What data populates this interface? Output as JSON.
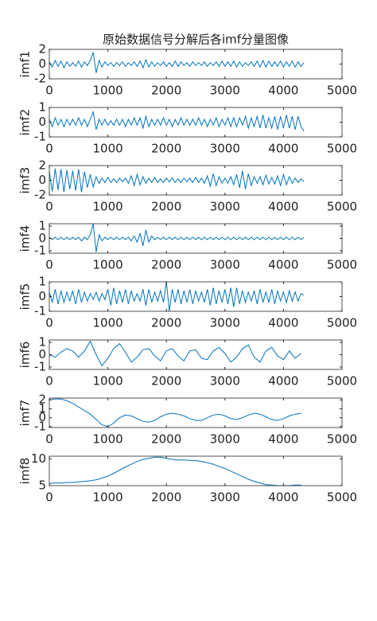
{
  "chart_data": [
    {
      "type": "line",
      "title": "原始数据信号分解后各imf分量图像",
      "ylabel": "imf1",
      "color": "#0072bd",
      "x": [
        0,
        50,
        100,
        150,
        200,
        250,
        300,
        350,
        400,
        450,
        500,
        550,
        600,
        650,
        700,
        750,
        800,
        850,
        900,
        950,
        1000,
        1050,
        1100,
        1150,
        1200,
        1250,
        1300,
        1350,
        1400,
        1450,
        1500,
        1550,
        1600,
        1650,
        1700,
        1750,
        1800,
        1850,
        1900,
        1950,
        2000,
        2050,
        2100,
        2150,
        2200,
        2250,
        2300,
        2350,
        2400,
        2450,
        2500,
        2550,
        2600,
        2650,
        2700,
        2750,
        2800,
        2850,
        2900,
        2950,
        3000,
        3050,
        3100,
        3150,
        3200,
        3250,
        3300,
        3350,
        3400,
        3450,
        3500,
        3550,
        3600,
        3650,
        3700,
        3750,
        3800,
        3850,
        3900,
        3950,
        4000,
        4050,
        4100,
        4150,
        4200,
        4250,
        4300,
        4350
      ],
      "values": [
        0.3,
        -0.4,
        0.5,
        -0.3,
        0.4,
        -0.5,
        0.3,
        -0.3,
        0.2,
        -0.3,
        0.4,
        -0.4,
        0.3,
        -0.2,
        0.5,
        1.6,
        -1.2,
        0.5,
        -0.4,
        0.3,
        -0.2,
        0.2,
        -0.3,
        0.2,
        -0.2,
        0.3,
        -0.3,
        0.2,
        -0.2,
        0.3,
        -0.3,
        0.4,
        -0.5,
        0.6,
        -0.4,
        0.3,
        -0.3,
        0.2,
        -0.2,
        0.3,
        -0.3,
        0.2,
        -0.3,
        0.4,
        -0.3,
        0.3,
        -0.2,
        0.2,
        -0.3,
        0.3,
        -0.2,
        0.2,
        -0.2,
        0.3,
        -0.3,
        0.2,
        -0.2,
        0.3,
        -0.3,
        0.4,
        -0.3,
        0.3,
        -0.3,
        0.4,
        -0.4,
        0.3,
        -0.3,
        0.2,
        -0.2,
        0.3,
        -0.3,
        0.4,
        -0.4,
        0.5,
        -0.4,
        0.4,
        -0.3,
        0.3,
        -0.3,
        0.4,
        -0.4,
        0.3,
        -0.3,
        0.4,
        -0.4,
        0.3,
        -0.3,
        0.2
      ],
      "xlim": [
        0,
        5000
      ],
      "xticks": [
        0,
        1000,
        2000,
        3000,
        4000,
        5000
      ],
      "ylim": [
        -2,
        2
      ],
      "yticks": [
        -2,
        0,
        2
      ]
    },
    {
      "type": "line",
      "ylabel": "imf2",
      "color": "#0072bd",
      "x": [
        0,
        50,
        100,
        150,
        200,
        250,
        300,
        350,
        400,
        450,
        500,
        550,
        600,
        650,
        700,
        750,
        800,
        850,
        900,
        950,
        1000,
        1050,
        1100,
        1150,
        1200,
        1250,
        1300,
        1350,
        1400,
        1450,
        1500,
        1550,
        1600,
        1650,
        1700,
        1750,
        1800,
        1850,
        1900,
        1950,
        2000,
        2050,
        2100,
        2150,
        2200,
        2250,
        2300,
        2350,
        2400,
        2450,
        2500,
        2550,
        2600,
        2650,
        2700,
        2750,
        2800,
        2850,
        2900,
        2950,
        3000,
        3050,
        3100,
        3150,
        3200,
        3250,
        3300,
        3350,
        3400,
        3450,
        3500,
        3550,
        3600,
        3650,
        3700,
        3750,
        3800,
        3850,
        3900,
        3950,
        4000,
        4050,
        4100,
        4150,
        4200,
        4250,
        4300,
        4350
      ],
      "values": [
        0.2,
        -0.3,
        0.3,
        -0.2,
        0.2,
        -0.3,
        0.2,
        -0.2,
        0.2,
        -0.2,
        0.3,
        -0.2,
        0.2,
        -0.3,
        0.2,
        0.7,
        -0.5,
        0.2,
        -0.2,
        0.2,
        -0.2,
        0.1,
        -0.2,
        0.2,
        -0.2,
        0.2,
        -0.3,
        0.2,
        -0.2,
        0.3,
        -0.2,
        0.3,
        -0.4,
        0.4,
        -0.3,
        0.2,
        -0.2,
        0.2,
        -0.2,
        0.3,
        -0.2,
        0.2,
        -0.3,
        0.2,
        -0.2,
        0.3,
        -0.2,
        0.2,
        -0.2,
        0.2,
        -0.2,
        0.3,
        -0.2,
        0.2,
        -0.3,
        0.2,
        -0.2,
        0.3,
        -0.3,
        0.2,
        -0.2,
        0.3,
        -0.3,
        0.3,
        -0.3,
        0.3,
        -0.2,
        0.4,
        -0.4,
        0.3,
        -0.3,
        0.4,
        -0.4,
        0.5,
        -0.4,
        0.3,
        -0.4,
        0.4,
        -0.5,
        0.4,
        -0.4,
        0.5,
        -0.4,
        0.4,
        -0.5,
        0.4,
        -0.3,
        -0.6
      ],
      "xlim": [
        0,
        5000
      ],
      "xticks": [
        0,
        1000,
        2000,
        3000,
        4000,
        5000
      ],
      "ylim": [
        -1,
        1
      ],
      "yticks": [
        -1,
        0,
        1
      ]
    },
    {
      "type": "line",
      "ylabel": "imf3",
      "color": "#0072bd",
      "x": [
        0,
        50,
        100,
        150,
        200,
        250,
        300,
        350,
        400,
        450,
        500,
        550,
        600,
        650,
        700,
        750,
        800,
        850,
        900,
        950,
        1000,
        1050,
        1100,
        1150,
        1200,
        1250,
        1300,
        1350,
        1400,
        1450,
        1500,
        1550,
        1600,
        1650,
        1700,
        1750,
        1800,
        1850,
        1900,
        1950,
        2000,
        2050,
        2100,
        2150,
        2200,
        2250,
        2300,
        2350,
        2400,
        2450,
        2500,
        2550,
        2600,
        2650,
        2700,
        2750,
        2800,
        2850,
        2900,
        2950,
        3000,
        3050,
        3100,
        3150,
        3200,
        3250,
        3300,
        3350,
        3400,
        3450,
        3500,
        3550,
        3600,
        3650,
        3700,
        3750,
        3800,
        3850,
        3900,
        3950,
        4000,
        4050,
        4100,
        4150,
        4200,
        4250,
        4300,
        4350
      ],
      "values": [
        1.2,
        -1.5,
        1.6,
        -1.3,
        1.5,
        -1.6,
        1.4,
        -1.2,
        1.3,
        -1.4,
        1.5,
        -1.6,
        1.2,
        -1.0,
        0.8,
        -0.9,
        0.5,
        -0.4,
        0.3,
        -0.3,
        0.4,
        -0.3,
        0.2,
        -0.3,
        0.3,
        -0.2,
        0.3,
        -0.4,
        0.6,
        -0.7,
        0.8,
        -0.6,
        0.5,
        -0.4,
        0.3,
        -0.3,
        0.4,
        -0.3,
        0.2,
        -0.3,
        0.3,
        -0.2,
        0.3,
        -0.3,
        0.2,
        -0.3,
        0.3,
        -0.2,
        0.3,
        -0.3,
        0.4,
        -0.3,
        0.3,
        -0.4,
        0.6,
        -0.8,
        0.9,
        -0.7,
        0.5,
        -0.4,
        0.3,
        -0.4,
        0.5,
        -0.6,
        0.8,
        -1.0,
        1.3,
        -1.2,
        0.9,
        -0.7,
        0.5,
        -0.4,
        0.5,
        -0.6,
        0.7,
        -0.5,
        0.4,
        -0.5,
        0.6,
        -0.7,
        0.8,
        -0.6,
        0.5,
        -0.4,
        0.3,
        -0.3,
        0.2,
        -0.2
      ],
      "xlim": [
        0,
        5000
      ],
      "xticks": [
        0,
        1000,
        2000,
        3000,
        4000,
        5000
      ],
      "ylim": [
        -2,
        2
      ],
      "yticks": [
        -2,
        0,
        2
      ]
    },
    {
      "type": "line",
      "ylabel": "imf4",
      "color": "#0072bd",
      "x": [
        0,
        50,
        100,
        150,
        200,
        250,
        300,
        350,
        400,
        450,
        500,
        550,
        600,
        650,
        700,
        750,
        800,
        850,
        900,
        950,
        1000,
        1050,
        1100,
        1150,
        1200,
        1250,
        1300,
        1350,
        1400,
        1450,
        1500,
        1550,
        1600,
        1650,
        1700,
        1750,
        1800,
        1850,
        1900,
        1950,
        2000,
        2050,
        2100,
        2150,
        2200,
        2250,
        2300,
        2350,
        2400,
        2450,
        2500,
        2550,
        2600,
        2650,
        2700,
        2750,
        2800,
        2850,
        2900,
        2950,
        3000,
        3050,
        3100,
        3150,
        3200,
        3250,
        3300,
        3350,
        3400,
        3450,
        3500,
        3550,
        3600,
        3650,
        3700,
        3750,
        3800,
        3850,
        3900,
        3950,
        4000,
        4050,
        4100,
        4150,
        4200,
        4250,
        4300,
        4350
      ],
      "values": [
        0.1,
        -0.1,
        0.1,
        -0.1,
        0.1,
        -0.1,
        0.1,
        -0.1,
        0.1,
        -0.1,
        0.1,
        -0.2,
        0.1,
        -0.1,
        0.3,
        1.2,
        -1.1,
        0.3,
        -0.2,
        0.1,
        -0.1,
        0.1,
        -0.1,
        0.1,
        -0.1,
        0.1,
        -0.1,
        0.1,
        -0.2,
        0.2,
        -0.3,
        0.4,
        -0.6,
        0.7,
        -0.3,
        0.2,
        -0.1,
        0.1,
        -0.1,
        0.1,
        -0.1,
        0.1,
        -0.1,
        0.1,
        -0.1,
        0.1,
        -0.1,
        0.1,
        -0.1,
        0.1,
        -0.1,
        0.1,
        -0.1,
        0.1,
        -0.1,
        0.1,
        -0.1,
        0.1,
        -0.1,
        0.1,
        -0.1,
        0.1,
        -0.1,
        0.1,
        -0.1,
        0.1,
        -0.1,
        0.1,
        -0.1,
        0.1,
        -0.1,
        0.1,
        -0.1,
        0.1,
        -0.1,
        0.1,
        -0.1,
        0.1,
        -0.1,
        0.1,
        -0.1,
        0.1,
        -0.1,
        0.1,
        -0.1,
        0.1,
        -0.1,
        0.1
      ],
      "xlim": [
        0,
        5000
      ],
      "xticks": [
        0,
        1000,
        2000,
        3000,
        4000,
        5000
      ],
      "ylim": [
        -1.2,
        1.2
      ],
      "yticks": [
        -1,
        0,
        1
      ]
    },
    {
      "type": "line",
      "ylabel": "imf5",
      "color": "#0072bd",
      "x": [
        0,
        50,
        100,
        150,
        200,
        250,
        300,
        350,
        400,
        450,
        500,
        550,
        600,
        650,
        700,
        750,
        800,
        850,
        900,
        950,
        1000,
        1050,
        1100,
        1150,
        1200,
        1250,
        1300,
        1350,
        1400,
        1450,
        1500,
        1550,
        1600,
        1650,
        1700,
        1750,
        1800,
        1850,
        1900,
        1950,
        2000,
        2050,
        2100,
        2150,
        2200,
        2250,
        2300,
        2350,
        2400,
        2450,
        2500,
        2550,
        2600,
        2650,
        2700,
        2750,
        2800,
        2850,
        2900,
        2950,
        3000,
        3050,
        3100,
        3150,
        3200,
        3250,
        3300,
        3350,
        3400,
        3450,
        3500,
        3550,
        3600,
        3650,
        3700,
        3750,
        3800,
        3850,
        3900,
        3950,
        4000,
        4050,
        4100,
        4150,
        4200,
        4250,
        4300,
        4350
      ],
      "values": [
        0.3,
        -0.4,
        0.5,
        -0.5,
        0.4,
        -0.4,
        0.3,
        -0.3,
        0.4,
        -0.5,
        0.5,
        -0.4,
        0.3,
        -0.3,
        0.2,
        -0.2,
        0.3,
        -0.3,
        0.2,
        -0.2,
        0.5,
        -0.6,
        0.6,
        -0.5,
        0.4,
        -0.4,
        0.5,
        -0.5,
        0.4,
        -0.3,
        0.2,
        -0.3,
        0.5,
        -0.6,
        0.5,
        -0.4,
        0.3,
        -0.3,
        0.4,
        -0.4,
        1.0,
        -1.0,
        0.5,
        -0.4,
        0.5,
        -0.5,
        0.4,
        -0.4,
        0.5,
        -0.5,
        0.4,
        -0.3,
        0.3,
        -0.4,
        0.5,
        -0.6,
        0.6,
        -0.5,
        0.4,
        -0.4,
        0.5,
        -0.5,
        0.6,
        -0.7,
        0.6,
        -0.5,
        0.4,
        -0.4,
        0.3,
        -0.3,
        0.4,
        -0.5,
        0.5,
        -0.4,
        0.3,
        -0.4,
        0.5,
        -0.5,
        0.4,
        -0.3,
        0.3,
        -0.4,
        0.4,
        -0.3,
        0.3,
        -0.3,
        0.2,
        0.1
      ],
      "xlim": [
        0,
        5000
      ],
      "xticks": [
        0,
        1000,
        2000,
        3000,
        4000,
        5000
      ],
      "ylim": [
        -1,
        1
      ],
      "yticks": [
        -1,
        0,
        1
      ]
    },
    {
      "type": "line",
      "ylabel": "imf6",
      "color": "#0072bd",
      "x": [
        0,
        100,
        200,
        300,
        400,
        500,
        600,
        700,
        800,
        900,
        1000,
        1100,
        1200,
        1300,
        1400,
        1500,
        1600,
        1700,
        1800,
        1900,
        2000,
        2100,
        2200,
        2300,
        2400,
        2500,
        2600,
        2700,
        2800,
        2900,
        3000,
        3100,
        3200,
        3300,
        3400,
        3500,
        3600,
        3700,
        3800,
        3900,
        4000,
        4100,
        4200,
        4300
      ],
      "values": [
        0,
        -0.2,
        0.2,
        0.5,
        0.3,
        -0.2,
        0.3,
        1.1,
        0.0,
        -0.9,
        -0.3,
        0.5,
        0.9,
        0.2,
        -0.6,
        -0.2,
        0.4,
        0.5,
        -0.1,
        -0.5,
        0.3,
        0.5,
        -0.1,
        -0.5,
        0.3,
        0.4,
        -0.3,
        -0.4,
        0.3,
        0.6,
        0.1,
        -0.6,
        -0.2,
        0.5,
        0.8,
        -0.2,
        -0.6,
        0.3,
        0.6,
        -0.1,
        -0.4,
        0.3,
        -0.3,
        0.1
      ],
      "xlim": [
        0,
        5000
      ],
      "xticks": [
        0,
        1000,
        2000,
        3000,
        4000,
        5000
      ],
      "ylim": [
        -1.2,
        1.2
      ],
      "yticks": [
        -1,
        0,
        1
      ]
    },
    {
      "type": "line",
      "ylabel": "imf7",
      "color": "#0072bd",
      "x": [
        0,
        100,
        200,
        300,
        400,
        500,
        600,
        700,
        800,
        900,
        1000,
        1100,
        1200,
        1300,
        1400,
        1500,
        1600,
        1700,
        1800,
        1900,
        2000,
        2100,
        2200,
        2300,
        2400,
        2500,
        2600,
        2700,
        2800,
        2900,
        3000,
        3100,
        3200,
        3300,
        3400,
        3500,
        3600,
        3700,
        3800,
        3900,
        4000,
        4100,
        4200,
        4300
      ],
      "values": [
        2.0,
        2.1,
        2.1,
        1.9,
        1.6,
        1.2,
        0.8,
        0.4,
        -0.2,
        -0.8,
        -1.0,
        -0.6,
        0.0,
        0.3,
        0.2,
        -0.1,
        -0.4,
        -0.5,
        -0.3,
        0.1,
        0.4,
        0.5,
        0.4,
        0.2,
        -0.1,
        -0.3,
        -0.3,
        0.0,
        0.3,
        0.4,
        0.2,
        -0.1,
        -0.2,
        0.0,
        0.3,
        0.5,
        0.4,
        0.1,
        -0.2,
        -0.3,
        -0.1,
        0.2,
        0.4,
        0.5
      ],
      "xlim": [
        0,
        5000
      ],
      "xticks": [
        0,
        1000,
        2000,
        3000,
        4000,
        5000
      ],
      "ylim": [
        -1.1,
        2.2
      ],
      "yticks": [
        -1,
        0,
        1,
        2
      ]
    },
    {
      "type": "line",
      "ylabel": "imf8",
      "color": "#0072bd",
      "x": [
        0,
        100,
        200,
        300,
        400,
        500,
        600,
        700,
        800,
        900,
        1000,
        1100,
        1200,
        1300,
        1400,
        1500,
        1600,
        1700,
        1800,
        1900,
        2000,
        2100,
        2200,
        2300,
        2400,
        2500,
        2600,
        2700,
        2800,
        2900,
        3000,
        3100,
        3200,
        3300,
        3400,
        3500,
        3600,
        3700,
        3800,
        3900,
        4000,
        4100,
        4200,
        4300
      ],
      "values": [
        5.4,
        5.5,
        5.5,
        5.6,
        5.6,
        5.7,
        5.8,
        5.9,
        6.1,
        6.4,
        6.8,
        7.3,
        7.9,
        8.5,
        9.0,
        9.5,
        9.9,
        10.1,
        10.3,
        10.3,
        10.1,
        9.9,
        9.8,
        9.8,
        9.7,
        9.7,
        9.5,
        9.3,
        9.0,
        8.6,
        8.2,
        7.7,
        7.2,
        6.7,
        6.2,
        5.8,
        5.5,
        5.2,
        5.1,
        5.0,
        5.0,
        5.0,
        5.1,
        5.1
      ],
      "xlim": [
        0,
        5000
      ],
      "xticks": [
        0,
        1000,
        2000,
        3000,
        4000,
        5000
      ],
      "ylim": [
        5,
        10.5
      ],
      "yticks": [
        5,
        10
      ]
    }
  ]
}
